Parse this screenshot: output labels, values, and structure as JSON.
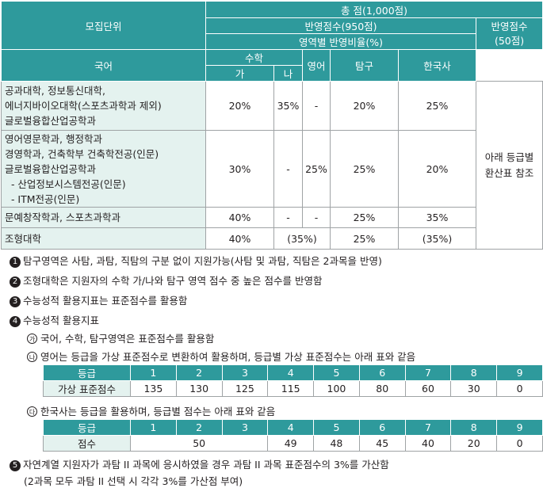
{
  "header": {
    "unit": "모집단위",
    "total": "총 점(1,000점)",
    "reflect950": "반영점수(950점)",
    "ratio": "영역별 반영비율(%)",
    "reflect50": "반영점수\n(50점)",
    "korean": "국어",
    "math": "수학",
    "math_ga": "가",
    "math_na": "나",
    "english": "영어",
    "inquiry": "탐구",
    "history": "한국사"
  },
  "rows": [
    {
      "unit": "공과대학, 정보통신대학,\n에너지바이오대학(스포츠과학과 제외)\n글로벌융합산업공학과",
      "korean": "20%",
      "ga": "35%",
      "na": "-",
      "english": "20%",
      "inquiry": "25%"
    },
    {
      "unit": "영어영문학과, 행정학과\n경영학과, 건축학부 건축학전공(인문)\n글로벌융합산업공학과\n  - 산업정보시스템전공(인문)\n  - ITM전공(인문)",
      "korean": "30%",
      "ga": "-",
      "na": "25%",
      "english": "25%",
      "inquiry": "20%"
    },
    {
      "unit": "문예창작학과, 스포츠과학과",
      "korean": "40%",
      "ga": "-",
      "na": "-",
      "english": "25%",
      "inquiry": "35%"
    },
    {
      "unit": "조형대학",
      "korean": "40%",
      "math": "(35%)",
      "english": "25%",
      "inquiry": "(35%)"
    }
  ],
  "history_note": "아래 등급별\n환산표 참조",
  "notes": {
    "n1": "탐구영역은 사탐, 과탐, 직탐의 구분 없이 지원가능(사탐 및 과탐, 직탐은 2과목을 반영)",
    "n2": "조형대학은 지원자의 수학 가/나와 탐구 영역 점수 중 높은 점수를 반영함",
    "n3": "수능성적 활용지표는 표준점수를 활용함",
    "n4": "수능성적 활용지표",
    "s1": "국어, 수학, 탐구영역은 표준점수를 활용함",
    "s2": "영어는 등급을 가상 표준점수로 변환하여 활용하며, 등급별 가상 표준점수는 아래 표와 같음",
    "s3": "한국사는 등급을 활용하며, 등급별 점수는 아래 표와 같음",
    "n5": "자연계열 지원자가 과탐 II 과목에 응시하였을 경우 과탐 II 과목 표준점수의 3%를 가산함",
    "n5b": "(2과목 모두 과탐 II 선택 시 각각 3%를 가산점 부여)"
  },
  "markers": {
    "n1": "1",
    "n2": "2",
    "n3": "3",
    "n4": "4",
    "n5": "5",
    "s1": "가",
    "s2": "나",
    "s3": "다"
  },
  "english_table": {
    "grade_label": "등급",
    "score_label": "가상 표준점수",
    "grades": [
      "1",
      "2",
      "3",
      "4",
      "5",
      "6",
      "7",
      "8",
      "9"
    ],
    "scores": [
      "135",
      "130",
      "125",
      "115",
      "100",
      "80",
      "60",
      "30",
      "0"
    ]
  },
  "history_table": {
    "grade_label": "등급",
    "score_label": "점수",
    "grades": [
      "1",
      "2",
      "3",
      "4",
      "5",
      "6",
      "7",
      "8",
      "9"
    ],
    "score_1_3": "50",
    "scores_4_9": [
      "49",
      "48",
      "45",
      "40",
      "20",
      "0"
    ]
  }
}
